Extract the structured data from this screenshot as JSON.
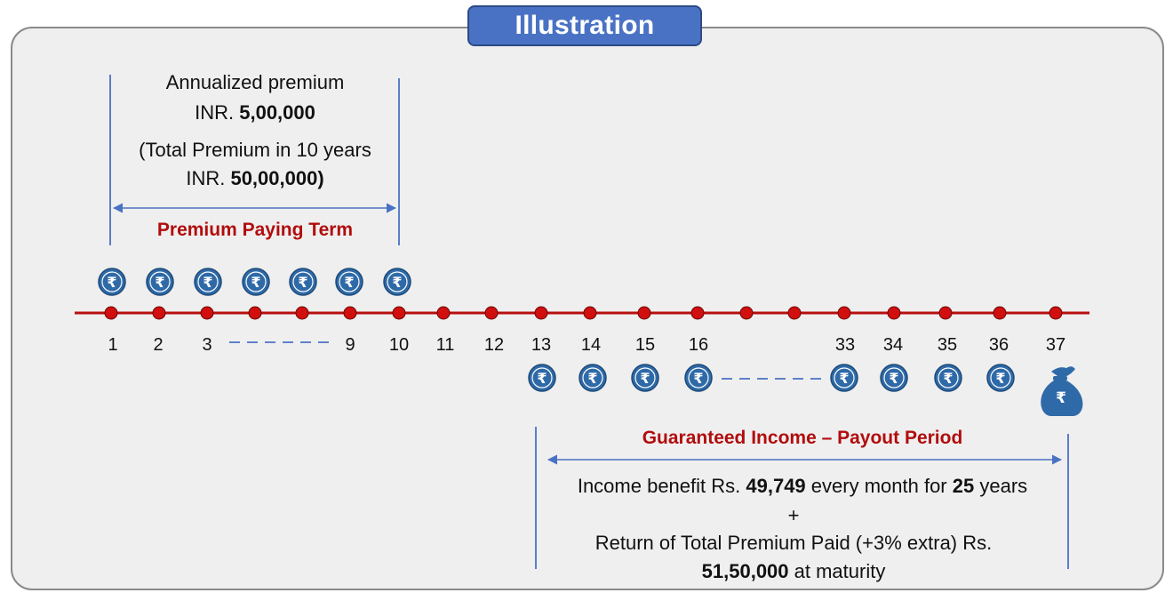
{
  "title": "Illustration",
  "premium": {
    "line1": "Annualized premium",
    "line2_prefix": "INR. ",
    "line2_amount": "5,00,000",
    "line3": "(Total Premium in 10 years",
    "line4_prefix": "INR. ",
    "line4_amount": "50,00,000)",
    "term_label": "Premium Paying Term"
  },
  "timeline": {
    "year_labels": [
      "1",
      "2",
      "3",
      "9",
      "10",
      "11",
      "12",
      "13",
      "14",
      "15",
      "16",
      "33",
      "34",
      "35",
      "36",
      "37"
    ],
    "currency_symbol": "₹"
  },
  "payout": {
    "heading": "Guaranteed Income – Payout Period",
    "line1_prefix": "Income benefit Rs. ",
    "line1_amount": "49,749",
    "line1_mid": " every month for ",
    "line1_years": "25",
    "line1_suffix": " years",
    "plus": "+",
    "line3": "Return of Total Premium Paid (+3% extra) Rs.",
    "line4_amount": "51,50,000",
    "line4_suffix": " at maturity"
  },
  "colors": {
    "badge": "#4a72c4",
    "timeline_line": "#b80f0f",
    "timeline_dot": "#d10f0f",
    "coin": "#2f6aa8",
    "bracket": "#4a72c4",
    "heading_red": "#b10d0d"
  }
}
